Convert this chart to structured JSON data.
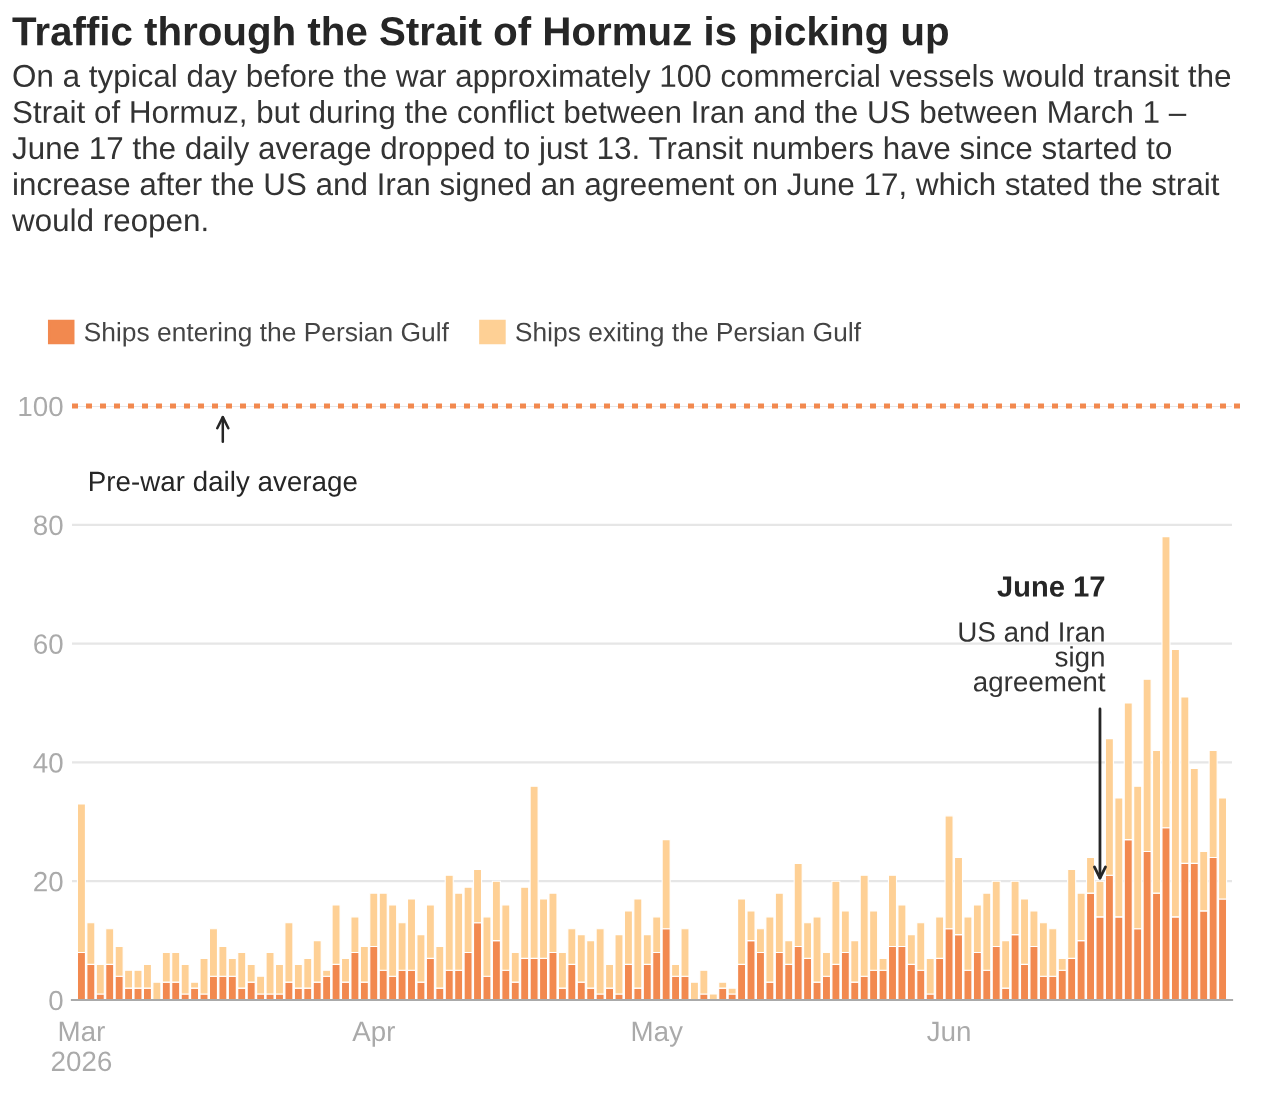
{
  "chart_data": {
    "type": "bar",
    "stacked": true,
    "title": "Traffic through the Strait of Hormuz is picking up",
    "subtitle": "On a typical day before the war approximately 100 commercial vessels would transit the Strait of Hormuz, but during the conflict between Iran and the US between March 1 – June 17 the daily average dropped to just 13. Transit numbers have since started to increase after the US and Iran signed an agreement on June 17, which stated the strait would reopen.",
    "x": [
      "2026-03-01",
      "2026-03-02",
      "2026-03-03",
      "2026-03-04",
      "2026-03-05",
      "2026-03-06",
      "2026-03-07",
      "2026-03-08",
      "2026-03-09",
      "2026-03-10",
      "2026-03-11",
      "2026-03-12",
      "2026-03-13",
      "2026-03-14",
      "2026-03-15",
      "2026-03-16",
      "2026-03-17",
      "2026-03-18",
      "2026-03-19",
      "2026-03-20",
      "2026-03-21",
      "2026-03-22",
      "2026-03-23",
      "2026-03-24",
      "2026-03-25",
      "2026-03-26",
      "2026-03-27",
      "2026-03-28",
      "2026-03-29",
      "2026-03-30",
      "2026-03-31",
      "2026-04-01",
      "2026-04-02",
      "2026-04-03",
      "2026-04-04",
      "2026-04-05",
      "2026-04-06",
      "2026-04-07",
      "2026-04-08",
      "2026-04-09",
      "2026-04-10",
      "2026-04-11",
      "2026-04-12",
      "2026-04-13",
      "2026-04-14",
      "2026-04-15",
      "2026-04-16",
      "2026-04-17",
      "2026-04-18",
      "2026-04-19",
      "2026-04-20",
      "2026-04-21",
      "2026-04-22",
      "2026-04-23",
      "2026-04-24",
      "2026-04-25",
      "2026-04-26",
      "2026-04-27",
      "2026-04-28",
      "2026-04-29",
      "2026-04-30",
      "2026-05-01",
      "2026-05-02",
      "2026-05-03",
      "2026-05-04",
      "2026-05-05",
      "2026-05-06",
      "2026-05-07",
      "2026-05-08",
      "2026-05-09",
      "2026-05-10",
      "2026-05-11",
      "2026-05-12",
      "2026-05-13",
      "2026-05-14",
      "2026-05-15",
      "2026-05-16",
      "2026-05-17",
      "2026-05-18",
      "2026-05-19",
      "2026-05-20",
      "2026-05-21",
      "2026-05-22",
      "2026-05-23",
      "2026-05-24",
      "2026-05-25",
      "2026-05-26",
      "2026-05-27",
      "2026-05-28",
      "2026-05-29",
      "2026-05-30",
      "2026-05-31",
      "2026-06-01",
      "2026-06-02",
      "2026-06-03",
      "2026-06-04",
      "2026-06-05",
      "2026-06-06",
      "2026-06-07",
      "2026-06-08",
      "2026-06-09",
      "2026-06-10",
      "2026-06-11",
      "2026-06-12",
      "2026-06-13",
      "2026-06-14",
      "2026-06-15",
      "2026-06-16",
      "2026-06-17",
      "2026-06-18",
      "2026-06-19",
      "2026-06-20",
      "2026-06-21",
      "2026-06-22",
      "2026-06-23",
      "2026-06-24",
      "2026-06-25",
      "2026-06-26",
      "2026-06-27",
      "2026-06-28",
      "2026-06-29",
      "2026-06-30"
    ],
    "series": [
      {
        "name": "Ships entering the Persian Gulf",
        "color": "#f2894f",
        "values": [
          8,
          6,
          1,
          6,
          4,
          2,
          2,
          2,
          0,
          3,
          3,
          1,
          2,
          1,
          4,
          4,
          4,
          2,
          3,
          1,
          1,
          1,
          3,
          2,
          2,
          3,
          4,
          6,
          3,
          8,
          3,
          9,
          5,
          4,
          5,
          5,
          3,
          7,
          2,
          5,
          5,
          8,
          13,
          4,
          10,
          5,
          3,
          7,
          7,
          7,
          8,
          2,
          6,
          3,
          2,
          1,
          2,
          1,
          6,
          2,
          6,
          8,
          12,
          4,
          4,
          0,
          1,
          0,
          2,
          1,
          6,
          10,
          8,
          3,
          8,
          6,
          9,
          7,
          3,
          4,
          6,
          8,
          3,
          4,
          5,
          5,
          9,
          9,
          6,
          5,
          1,
          7,
          12,
          11,
          5,
          8,
          5,
          9,
          2,
          11,
          6,
          9,
          4,
          4,
          5,
          7,
          10,
          18,
          14,
          21,
          14,
          27,
          12,
          25,
          18,
          29,
          14,
          23,
          23,
          15,
          24,
          17
        ]
      },
      {
        "name": "Ships exiting the Persian Gulf",
        "color": "#fed095",
        "values": [
          25,
          7,
          5,
          6,
          5,
          3,
          3,
          4,
          3,
          5,
          5,
          5,
          1,
          6,
          8,
          5,
          3,
          6,
          3,
          3,
          7,
          5,
          10,
          4,
          5,
          7,
          1,
          10,
          4,
          6,
          6,
          9,
          13,
          12,
          8,
          12,
          8,
          9,
          7,
          16,
          13,
          11,
          9,
          10,
          10,
          11,
          5,
          12,
          29,
          10,
          10,
          6,
          6,
          8,
          8,
          11,
          4,
          10,
          9,
          15,
          5,
          6,
          15,
          2,
          8,
          3,
          4,
          1,
          1,
          1,
          11,
          5,
          4,
          11,
          10,
          4,
          14,
          6,
          11,
          4,
          14,
          7,
          7,
          17,
          10,
          2,
          12,
          7,
          5,
          8,
          6,
          7,
          19,
          13,
          9,
          8,
          13,
          11,
          8,
          9,
          11,
          6,
          9,
          8,
          2,
          15,
          8,
          6,
          6,
          23,
          20,
          23,
          24,
          29,
          24,
          49,
          45,
          28,
          16,
          10,
          18,
          17
        ]
      }
    ],
    "xlim": [
      "2026-02-28",
      "2026-07-01"
    ],
    "xticks": [
      {
        "value": "2026-03-01",
        "label": "Mar\n2026"
      },
      {
        "value": "2026-04-01",
        "label": "Apr"
      },
      {
        "value": "2026-05-01",
        "label": "May"
      },
      {
        "value": "2026-06-01",
        "label": "Jun"
      }
    ],
    "ylim": [
      0,
      100
    ],
    "yticks": [
      0,
      20,
      40,
      60,
      80,
      100
    ],
    "grid": "y",
    "legend": "top left",
    "ref_lines": [
      {
        "axis": "y",
        "value": 100,
        "label": "Pre-war daily average",
        "color": "#f2894f",
        "line_style": "dotted"
      }
    ],
    "annotations": [
      {
        "text": "June 17\nUS and Iran\nsign\nagreement",
        "x": "2026-06-17",
        "y": 20
      }
    ]
  }
}
